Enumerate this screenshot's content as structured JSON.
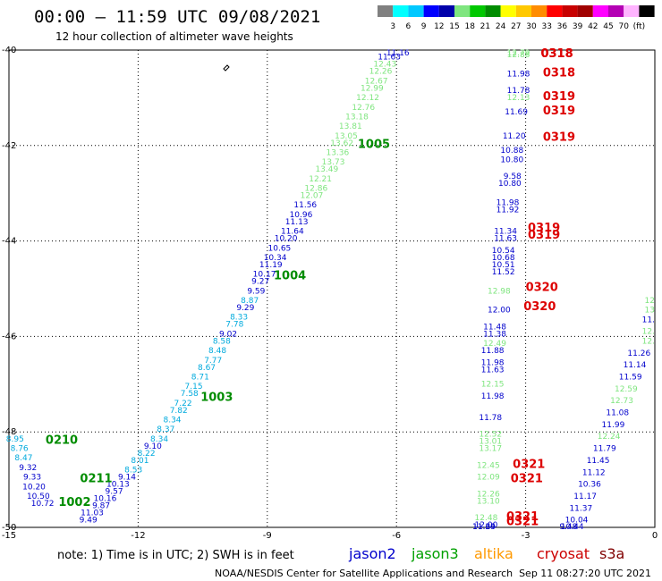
{
  "header": {
    "title": "00:00 — 11:59 UTC 09/08/2021",
    "subtitle": "12 hour collection of altimeter wave heights"
  },
  "color_scale": {
    "colors": [
      "#808080",
      "#00ffff",
      "#00c8ff",
      "#0000ff",
      "#0000aa",
      "#7fe57f",
      "#00c800",
      "#008c00",
      "#ffff00",
      "#ffc800",
      "#ff8c00",
      "#ff0000",
      "#c80000",
      "#a00000",
      "#ff00ff",
      "#b400b4",
      "#ffb4ff",
      "#000000"
    ],
    "labels": [
      "3",
      "6",
      "9",
      "12",
      "15",
      "18",
      "21",
      "24",
      "27",
      "30",
      "33",
      "36",
      "39",
      "42",
      "45",
      "70",
      "(ft)"
    ]
  },
  "note": "note:  1) Time is in UTC;  2) SWH is in feet",
  "legend": [
    {
      "name": "jason2",
      "color": "#0000cc"
    },
    {
      "name": "jason3",
      "color": "#00a000"
    },
    {
      "name": "altika",
      "color": "#ff9900"
    },
    {
      "name": "cryosat",
      "color": "#cc0000"
    },
    {
      "name": "s3a",
      "color": "#800000"
    }
  ],
  "footer": {
    "credit": "NOAA/NESDIS Center for Satellite Applications and Research",
    "timestamp": "Sep 11 08:27:20 UTC 2021"
  },
  "chart_data": {
    "type": "scatter",
    "xlim": [
      -15,
      0
    ],
    "ylim": [
      -50,
      -40
    ],
    "x_ticks": [
      -15,
      -12,
      -9,
      -6,
      -3,
      0
    ],
    "x_tick_labels": [
      "-15",
      "-12",
      "-9",
      "-6",
      "-3",
      "0"
    ],
    "y_ticks": [
      -40,
      -42,
      -44,
      -46,
      -48,
      -50
    ],
    "y_tick_labels": [
      "-40",
      "-42",
      "-44",
      "-46",
      "-48",
      "-50"
    ],
    "grid": true,
    "wave_heights": [
      {
        "x": -5.7,
        "y": -40.0,
        "v": "11.16",
        "c": "#0000cc"
      },
      {
        "x": -5.9,
        "y": -40.2,
        "v": "11.63",
        "c": "#0000cc"
      },
      {
        "x": -6.0,
        "y": -40.35,
        "v": "12.43",
        "c": "#7fe57f"
      },
      {
        "x": -6.1,
        "y": -40.5,
        "v": "12.26",
        "c": "#7fe57f"
      },
      {
        "x": -6.2,
        "y": -40.7,
        "v": "12.67",
        "c": "#7fe57f"
      },
      {
        "x": -6.3,
        "y": -40.85,
        "v": "12.99",
        "c": "#7fe57f"
      },
      {
        "x": -6.4,
        "y": -41.05,
        "v": "12.12",
        "c": "#7fe57f"
      },
      {
        "x": -6.5,
        "y": -41.25,
        "v": "12.76",
        "c": "#7fe57f"
      },
      {
        "x": -6.65,
        "y": -41.45,
        "v": "13.18",
        "c": "#7fe57f"
      },
      {
        "x": -6.8,
        "y": -41.65,
        "v": "13.81",
        "c": "#7fe57f"
      },
      {
        "x": -6.9,
        "y": -41.85,
        "v": "13.05",
        "c": "#7fe57f"
      },
      {
        "x": -7.0,
        "y": -42.0,
        "v": "13.62",
        "c": "#7fe57f"
      },
      {
        "x": -7.1,
        "y": -42.2,
        "v": "13.36",
        "c": "#7fe57f"
      },
      {
        "x": -7.2,
        "y": -42.4,
        "v": "13.73",
        "c": "#7fe57f"
      },
      {
        "x": -7.35,
        "y": -42.55,
        "v": "13.49",
        "c": "#7fe57f"
      },
      {
        "x": -7.5,
        "y": -42.75,
        "v": "12.21",
        "c": "#7fe57f"
      },
      {
        "x": -7.6,
        "y": -42.95,
        "v": "12.86",
        "c": "#7fe57f"
      },
      {
        "x": -7.7,
        "y": -43.1,
        "v": "12.07",
        "c": "#7fe57f"
      },
      {
        "x": -7.85,
        "y": -43.3,
        "v": "11.56",
        "c": "#0000cc"
      },
      {
        "x": -7.95,
        "y": -43.5,
        "v": "10.96",
        "c": "#0000cc"
      },
      {
        "x": -8.05,
        "y": -43.65,
        "v": "11.13",
        "c": "#0000cc"
      },
      {
        "x": -8.15,
        "y": -43.85,
        "v": "11.64",
        "c": "#0000cc"
      },
      {
        "x": -8.3,
        "y": -44.0,
        "v": "10.20",
        "c": "#0000cc"
      },
      {
        "x": -8.45,
        "y": -44.2,
        "v": "10.65",
        "c": "#0000cc"
      },
      {
        "x": -8.55,
        "y": -44.4,
        "v": "10.34",
        "c": "#0000cc"
      },
      {
        "x": -8.65,
        "y": -44.55,
        "v": "11.19",
        "c": "#0000cc"
      },
      {
        "x": -8.8,
        "y": -44.75,
        "v": "10.17",
        "c": "#0000cc"
      },
      {
        "x": -8.95,
        "y": -44.9,
        "v": "9.27",
        "c": "#0000cc"
      },
      {
        "x": -9.05,
        "y": -45.1,
        "v": "9.59",
        "c": "#0000cc"
      },
      {
        "x": -9.2,
        "y": -45.3,
        "v": "8.87",
        "c": "#00aadd"
      },
      {
        "x": -9.3,
        "y": -45.45,
        "v": "9.29",
        "c": "#0000cc"
      },
      {
        "x": -9.45,
        "y": -45.65,
        "v": "8.33",
        "c": "#00aadd"
      },
      {
        "x": -9.55,
        "y": -45.8,
        "v": "7.78",
        "c": "#00aadd"
      },
      {
        "x": -9.7,
        "y": -46.0,
        "v": "9.02",
        "c": "#0000cc"
      },
      {
        "x": -9.85,
        "y": -46.15,
        "v": "8.58",
        "c": "#00aadd"
      },
      {
        "x": -9.95,
        "y": -46.35,
        "v": "8.48",
        "c": "#00aadd"
      },
      {
        "x": -10.05,
        "y": -46.55,
        "v": "7.77",
        "c": "#00aadd"
      },
      {
        "x": -10.2,
        "y": -46.7,
        "v": "8.67",
        "c": "#00aadd"
      },
      {
        "x": -10.35,
        "y": -46.9,
        "v": "8.71",
        "c": "#00aadd"
      },
      {
        "x": -10.5,
        "y": -47.1,
        "v": "7.15",
        "c": "#00aadd"
      },
      {
        "x": -10.6,
        "y": -47.25,
        "v": "7.58",
        "c": "#00aadd"
      },
      {
        "x": -10.75,
        "y": -47.45,
        "v": "7.22",
        "c": "#00aadd"
      },
      {
        "x": -10.85,
        "y": -47.6,
        "v": "7.82",
        "c": "#00aadd"
      },
      {
        "x": -11.0,
        "y": -47.8,
        "v": "8.34",
        "c": "#00aadd"
      },
      {
        "x": -11.15,
        "y": -48.0,
        "v": "8.37",
        "c": "#00aadd"
      },
      {
        "x": -11.3,
        "y": -48.2,
        "v": "8.34",
        "c": "#00aadd"
      },
      {
        "x": -11.45,
        "y": -48.35,
        "v": "9.10",
        "c": "#0000cc"
      },
      {
        "x": -11.6,
        "y": -48.5,
        "v": "8.22",
        "c": "#00aadd"
      },
      {
        "x": -11.75,
        "y": -48.65,
        "v": "8.01",
        "c": "#00aadd"
      },
      {
        "x": -11.9,
        "y": -48.85,
        "v": "8.53",
        "c": "#00aadd"
      },
      {
        "x": -12.05,
        "y": -49.0,
        "v": "9.14",
        "c": "#0000cc"
      },
      {
        "x": -12.2,
        "y": -49.15,
        "v": "10.13",
        "c": "#0000cc"
      },
      {
        "x": -12.35,
        "y": -49.3,
        "v": "9.57",
        "c": "#0000cc"
      },
      {
        "x": -12.5,
        "y": -49.45,
        "v": "10.16",
        "c": "#0000cc"
      },
      {
        "x": -12.65,
        "y": -49.6,
        "v": "9.87",
        "c": "#0000cc"
      },
      {
        "x": -12.8,
        "y": -49.75,
        "v": "11.03",
        "c": "#0000cc"
      },
      {
        "x": -12.95,
        "y": -49.9,
        "v": "9.49",
        "c": "#0000cc"
      },
      {
        "x": -14.65,
        "y": -48.2,
        "v": "8.95",
        "c": "#00aadd"
      },
      {
        "x": -14.55,
        "y": -48.4,
        "v": "8.76",
        "c": "#00aadd"
      },
      {
        "x": -14.45,
        "y": -48.6,
        "v": "8.47",
        "c": "#00aadd"
      },
      {
        "x": -14.35,
        "y": -48.8,
        "v": "9.32",
        "c": "#0000cc"
      },
      {
        "x": -14.25,
        "y": -49.0,
        "v": "9.33",
        "c": "#0000cc"
      },
      {
        "x": -14.15,
        "y": -49.2,
        "v": "10.20",
        "c": "#0000cc"
      },
      {
        "x": -14.05,
        "y": -49.4,
        "v": "10.50",
        "c": "#0000cc"
      },
      {
        "x": -13.95,
        "y": -49.55,
        "v": "10.72",
        "c": "#0000cc"
      },
      {
        "x": -2.9,
        "y": -40.0,
        "v": "12.79",
        "c": "#7fe57f"
      },
      {
        "x": -2.9,
        "y": -40.15,
        "v": "12.88",
        "c": "#7fe57f"
      },
      {
        "x": -2.9,
        "y": -40.55,
        "v": "11.98",
        "c": "#0000cc"
      },
      {
        "x": -2.9,
        "y": -40.9,
        "v": "11.78",
        "c": "#0000cc"
      },
      {
        "x": -2.9,
        "y": -41.05,
        "v": "12.13",
        "c": "#7fe57f"
      },
      {
        "x": -2.95,
        "y": -41.35,
        "v": "11.69",
        "c": "#0000cc"
      },
      {
        "x": -3.0,
        "y": -41.85,
        "v": "11.20",
        "c": "#0000cc"
      },
      {
        "x": -3.05,
        "y": -42.15,
        "v": "10.88",
        "c": "#0000cc"
      },
      {
        "x": -3.05,
        "y": -42.35,
        "v": "10.80",
        "c": "#0000cc"
      },
      {
        "x": -3.1,
        "y": -42.7,
        "v": "9.58",
        "c": "#0000cc"
      },
      {
        "x": -3.1,
        "y": -42.85,
        "v": "10.80",
        "c": "#0000cc"
      },
      {
        "x": -3.15,
        "y": -43.25,
        "v": "11.98",
        "c": "#0000cc"
      },
      {
        "x": -3.15,
        "y": -43.4,
        "v": "11.92",
        "c": "#0000cc"
      },
      {
        "x": -3.2,
        "y": -43.85,
        "v": "11.34",
        "c": "#0000cc"
      },
      {
        "x": -3.2,
        "y": -44.0,
        "v": "11.63",
        "c": "#0000cc"
      },
      {
        "x": -3.25,
        "y": -44.25,
        "v": "10.54",
        "c": "#0000cc"
      },
      {
        "x": -3.25,
        "y": -44.4,
        "v": "10.68",
        "c": "#0000cc"
      },
      {
        "x": -3.25,
        "y": -44.55,
        "v": "10.51",
        "c": "#0000cc"
      },
      {
        "x": -3.25,
        "y": -44.7,
        "v": "11.52",
        "c": "#0000cc"
      },
      {
        "x": -3.35,
        "y": -45.1,
        "v": "12.98",
        "c": "#7fe57f"
      },
      {
        "x": -3.35,
        "y": -45.5,
        "v": "12.00",
        "c": "#0000cc"
      },
      {
        "x": -3.45,
        "y": -45.85,
        "v": "11.48",
        "c": "#0000cc"
      },
      {
        "x": -3.45,
        "y": -46.0,
        "v": "11.38",
        "c": "#0000cc"
      },
      {
        "x": -3.45,
        "y": -46.2,
        "v": "12.49",
        "c": "#7fe57f"
      },
      {
        "x": -3.5,
        "y": -46.35,
        "v": "11.88",
        "c": "#0000cc"
      },
      {
        "x": -3.5,
        "y": -46.6,
        "v": "11.98",
        "c": "#0000cc"
      },
      {
        "x": -3.5,
        "y": -46.75,
        "v": "11.63",
        "c": "#0000cc"
      },
      {
        "x": -3.5,
        "y": -47.05,
        "v": "12.15",
        "c": "#7fe57f"
      },
      {
        "x": -3.5,
        "y": -47.3,
        "v": "11.98",
        "c": "#0000cc"
      },
      {
        "x": -3.55,
        "y": -47.75,
        "v": "11.78",
        "c": "#0000cc"
      },
      {
        "x": -3.55,
        "y": -48.1,
        "v": "12.52",
        "c": "#7fe57f"
      },
      {
        "x": -3.55,
        "y": -48.25,
        "v": "13.01",
        "c": "#7fe57f"
      },
      {
        "x": -3.55,
        "y": -48.4,
        "v": "13.17",
        "c": "#7fe57f"
      },
      {
        "x": -3.6,
        "y": -48.75,
        "v": "12.45",
        "c": "#7fe57f"
      },
      {
        "x": -3.6,
        "y": -49.0,
        "v": "12.09",
        "c": "#7fe57f"
      },
      {
        "x": -3.6,
        "y": -49.35,
        "v": "12.26",
        "c": "#7fe57f"
      },
      {
        "x": -3.6,
        "y": -49.5,
        "v": "13.10",
        "c": "#7fe57f"
      },
      {
        "x": -3.65,
        "y": -49.85,
        "v": "12.48",
        "c": "#7fe57f"
      },
      {
        "x": -3.65,
        "y": -50.0,
        "v": "12.00",
        "c": "#0000cc"
      },
      {
        "x": -3.7,
        "y": -50.55,
        "v": "11.24",
        "c": "#0000cc"
      },
      {
        "x": -3.7,
        "y": -50.7,
        "v": "11.69",
        "c": "#0000cc"
      },
      {
        "x": 0.0,
        "y": -45.3,
        "v": "12",
        "c": "#7fe57f"
      },
      {
        "x": 0.0,
        "y": -45.5,
        "v": "13",
        "c": "#7fe57f"
      },
      {
        "x": 0.0,
        "y": -45.7,
        "v": "11.",
        "c": "#0000cc"
      },
      {
        "x": 0.0,
        "y": -45.95,
        "v": "12.",
        "c": "#7fe57f"
      },
      {
        "x": 0.0,
        "y": -46.15,
        "v": "12.",
        "c": "#7fe57f"
      },
      {
        "x": -0.1,
        "y": -46.4,
        "v": "11.26",
        "c": "#0000cc"
      },
      {
        "x": -0.2,
        "y": -46.65,
        "v": "11.14",
        "c": "#0000cc"
      },
      {
        "x": -0.3,
        "y": -46.9,
        "v": "11.59",
        "c": "#0000cc"
      },
      {
        "x": -0.4,
        "y": -47.15,
        "v": "12.59",
        "c": "#7fe57f"
      },
      {
        "x": -0.5,
        "y": -47.4,
        "v": "12.73",
        "c": "#7fe57f"
      },
      {
        "x": -0.6,
        "y": -47.65,
        "v": "11.08",
        "c": "#0000cc"
      },
      {
        "x": -0.7,
        "y": -47.9,
        "v": "11.99",
        "c": "#0000cc"
      },
      {
        "x": -0.8,
        "y": -48.15,
        "v": "12.24",
        "c": "#7fe57f"
      },
      {
        "x": -0.9,
        "y": -48.4,
        "v": "11.79",
        "c": "#0000cc"
      },
      {
        "x": -1.05,
        "y": -48.65,
        "v": "11.45",
        "c": "#0000cc"
      },
      {
        "x": -1.15,
        "y": -48.9,
        "v": "11.12",
        "c": "#0000cc"
      },
      {
        "x": -1.25,
        "y": -49.15,
        "v": "10.36",
        "c": "#0000cc"
      },
      {
        "x": -1.35,
        "y": -49.4,
        "v": "11.17",
        "c": "#0000cc"
      },
      {
        "x": -1.45,
        "y": -49.65,
        "v": "11.37",
        "c": "#0000cc"
      },
      {
        "x": -1.55,
        "y": -49.9,
        "v": "10.04",
        "c": "#0000cc"
      },
      {
        "x": -1.65,
        "y": -50.15,
        "v": "10.44",
        "c": "#0000cc"
      },
      {
        "x": -1.8,
        "y": -50.4,
        "v": "9.48",
        "c": "#0000cc"
      }
    ],
    "time_labels": [
      {
        "x": -6.9,
        "y": -42.05,
        "t": "1005",
        "c": "#008c00"
      },
      {
        "x": -8.85,
        "y": -44.8,
        "t": "1004",
        "c": "#008c00"
      },
      {
        "x": -10.55,
        "y": -47.35,
        "t": "1003",
        "c": "#008c00"
      },
      {
        "x": -14.15,
        "y": -48.25,
        "t": "0210",
        "c": "#008c00"
      },
      {
        "x": -13.35,
        "y": -49.05,
        "t": "0211",
        "c": "#008c00"
      },
      {
        "x": -13.85,
        "y": -49.55,
        "t": "1002",
        "c": "#008c00"
      },
      {
        "x": -2.65,
        "y": -40.05,
        "t": "0318",
        "c": "#dd0000"
      },
      {
        "x": -2.65,
        "y": -40.15,
        "t": "0318",
        "c": "#dd0000"
      },
      {
        "x": -2.6,
        "y": -40.55,
        "t": "0318",
        "c": "#dd0000"
      },
      {
        "x": -2.6,
        "y": -41.05,
        "t": "0319",
        "c": "#dd0000"
      },
      {
        "x": -2.6,
        "y": -41.35,
        "t": "0319",
        "c": "#dd0000"
      },
      {
        "x": -2.6,
        "y": -41.9,
        "t": "0319",
        "c": "#dd0000"
      },
      {
        "x": -2.95,
        "y": -43.8,
        "t": "0319",
        "c": "#dd0000"
      },
      {
        "x": -2.95,
        "y": -43.95,
        "t": "0319",
        "c": "#dd0000"
      },
      {
        "x": -3.0,
        "y": -45.05,
        "t": "0320",
        "c": "#dd0000"
      },
      {
        "x": -3.05,
        "y": -45.45,
        "t": "0320",
        "c": "#dd0000"
      },
      {
        "x": -3.3,
        "y": -48.75,
        "t": "0321",
        "c": "#dd0000"
      },
      {
        "x": -3.35,
        "y": -49.05,
        "t": "0321",
        "c": "#dd0000"
      },
      {
        "x": -3.45,
        "y": -49.85,
        "t": "0321",
        "c": "#dd0000"
      },
      {
        "x": -3.45,
        "y": -49.95,
        "t": "0321",
        "c": "#dd0000"
      }
    ]
  }
}
